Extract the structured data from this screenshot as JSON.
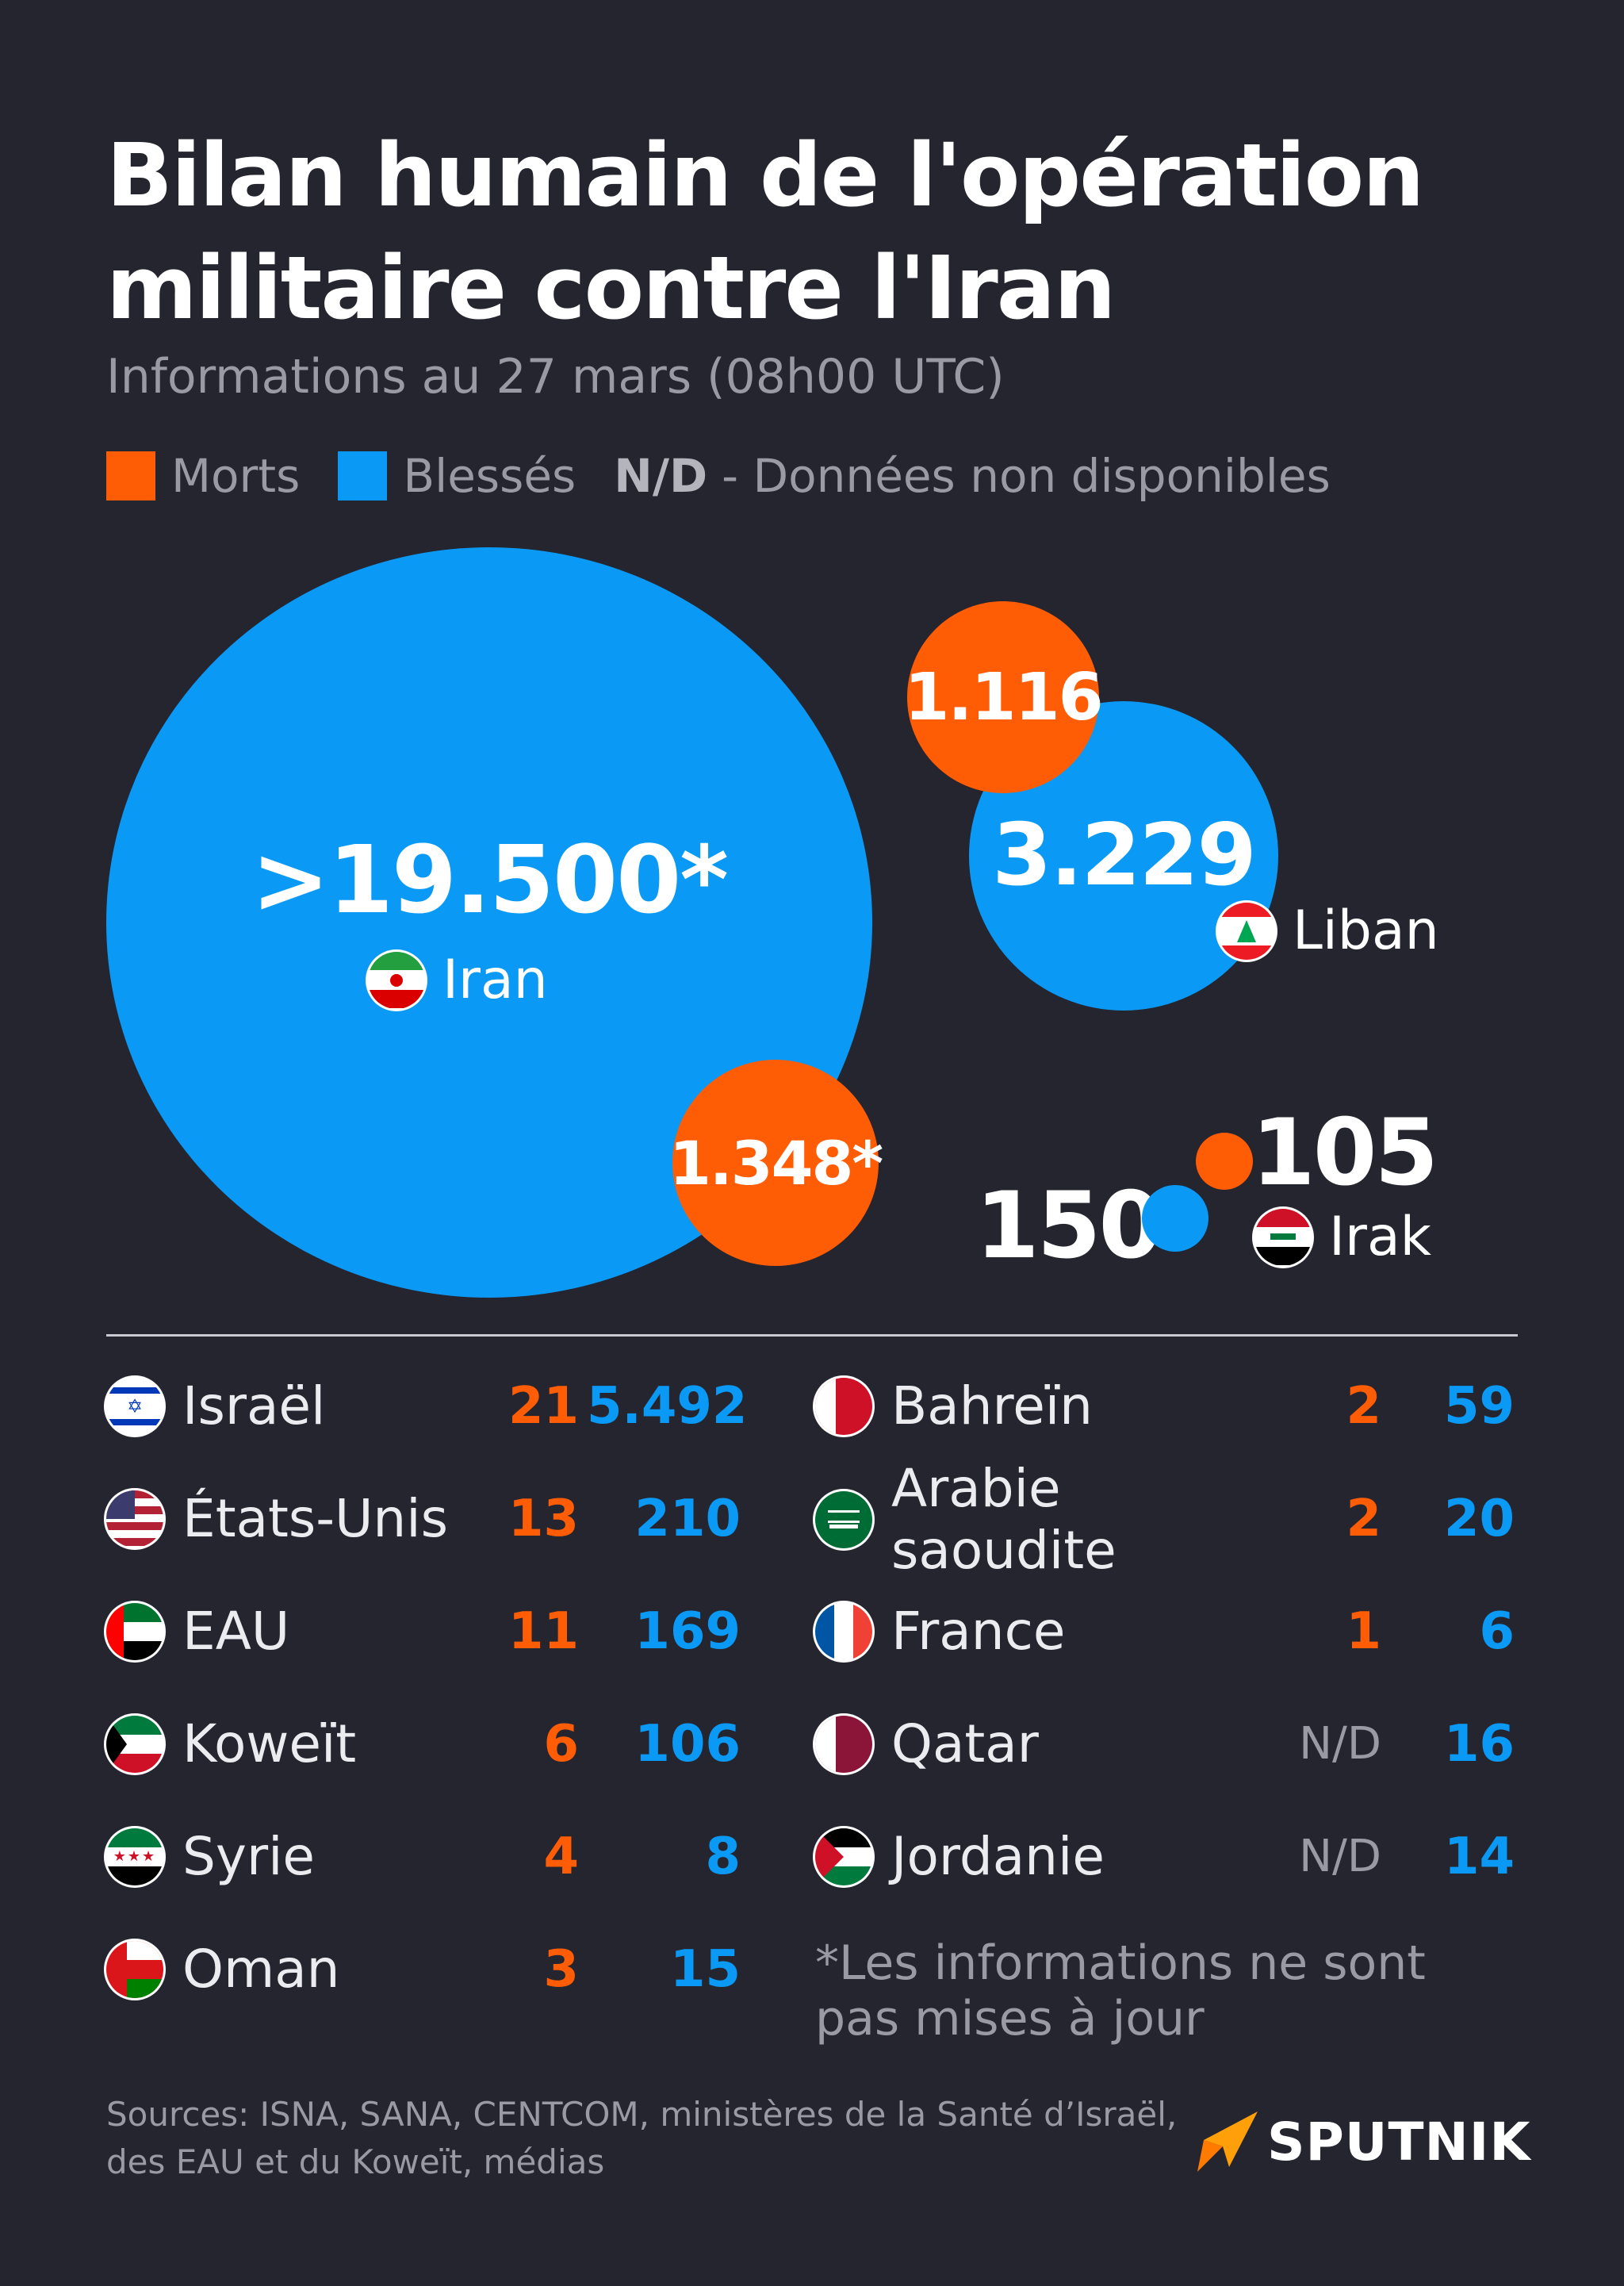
{
  "title_line1": "Bilan humain de l'opération",
  "title_line2": "militaire contre l'Iran",
  "subtitle": "Informations au 27 mars (08h00 UTC)",
  "legend": {
    "dead_label": "Morts",
    "injured_label": "Blessés",
    "nd_abbr": "N/D",
    "nd_text": "- Données non disponibles",
    "dead_color": "#ff5d05",
    "injured_color": "#0a99f5"
  },
  "bubbles": {
    "iran": {
      "country": "Iran",
      "injured": ">19.500*",
      "dead": "1.348*"
    },
    "liban": {
      "country": "Liban",
      "injured": "3.229",
      "dead": "1.116"
    },
    "irak": {
      "country": "Irak",
      "injured": "150",
      "dead": "105"
    }
  },
  "table_left": [
    {
      "country": "Israël",
      "dead": "21",
      "injured": "5.492",
      "flag": "israel-flag"
    },
    {
      "country": "États-Unis",
      "dead": "13",
      "injured": "210",
      "flag": "usa-flag"
    },
    {
      "country": "EAU",
      "dead": "11",
      "injured": "169",
      "flag": "uae-flag"
    },
    {
      "country": "Koweït",
      "dead": "6",
      "injured": "106",
      "flag": "kuwait-flag"
    },
    {
      "country": "Syrie",
      "dead": "4",
      "injured": "8",
      "flag": "syria-flag"
    },
    {
      "country": "Oman",
      "dead": "3",
      "injured": "15",
      "flag": "oman-flag"
    }
  ],
  "table_right": [
    {
      "country": "Bahreïn",
      "dead": "2",
      "injured": "59",
      "flag": "bahrain-flag"
    },
    {
      "country_line1": "Arabie",
      "country_line2": "saoudite",
      "dead": "2",
      "injured": "20",
      "flag": "saudi-flag"
    },
    {
      "country": "France",
      "dead": "1",
      "injured": "6",
      "flag": "france-flag"
    },
    {
      "country": "Qatar",
      "dead": "N/D",
      "injured": "16",
      "flag": "qatar-flag"
    },
    {
      "country": "Jordanie",
      "dead": "N/D",
      "injured": "14",
      "flag": "jordan-flag"
    }
  ],
  "footnote_line1": "*Les informations ne sont",
  "footnote_line2": "pas mises à jour",
  "sources_line1": "Sources: ISNA, SANA, CENTCOM, ministères de la Santé d’Israël,",
  "sources_line2": "des EAU et du Koweït, médias",
  "brand": "SPUTNIK"
}
